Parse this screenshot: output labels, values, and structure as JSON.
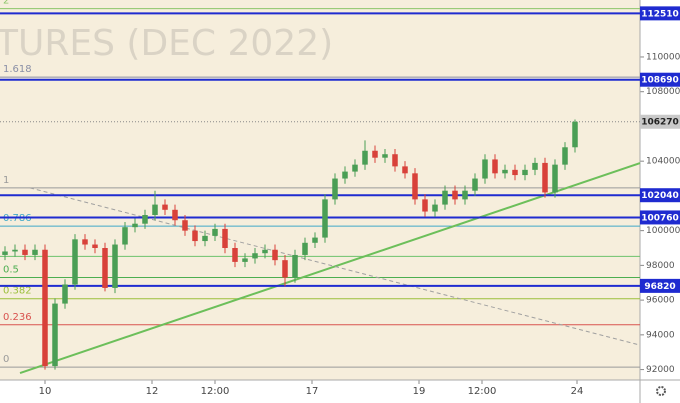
{
  "chart_data": {
    "type": "candlestick",
    "watermark": "TURES (DEC 2022)",
    "x": [
      -8,
      -6,
      -4,
      -2,
      0,
      2,
      4,
      6,
      8,
      10,
      12,
      14,
      16,
      18,
      20,
      22,
      24,
      26,
      28,
      30,
      32,
      34,
      36,
      38,
      40,
      42,
      44,
      46,
      48,
      50,
      52,
      54,
      56,
      58,
      60,
      62,
      64,
      66,
      68,
      70,
      72,
      74,
      76,
      78,
      80,
      82,
      84,
      86,
      88,
      90,
      92,
      94,
      96,
      98,
      100,
      102,
      104,
      106
    ],
    "open": [
      98600,
      98800,
      98900,
      98600,
      98900,
      92200,
      95800,
      96900,
      99500,
      99200,
      99000,
      96700,
      99200,
      100200,
      100400,
      100900,
      101500,
      101200,
      100600,
      100000,
      99400,
      99700,
      100100,
      99000,
      98200,
      98400,
      98700,
      98900,
      98300,
      97300,
      98600,
      99300,
      99600,
      101800,
      103000,
      103400,
      103800,
      104600,
      104200,
      104400,
      103700,
      103300,
      101800,
      101100,
      101500,
      102300,
      101800,
      102300,
      103000,
      104100,
      103300,
      103500,
      103200,
      103500,
      103900,
      102200,
      103800,
      104800
    ],
    "high": [
      99100,
      99200,
      99200,
      99200,
      99200,
      96100,
      97200,
      99800,
      99800,
      99500,
      99300,
      99500,
      100500,
      100700,
      101200,
      102300,
      101800,
      101500,
      100900,
      100300,
      100000,
      100400,
      100400,
      99300,
      98700,
      99000,
      99200,
      99200,
      98600,
      98900,
      99600,
      99900,
      102100,
      103300,
      103700,
      104100,
      105200,
      104900,
      104700,
      104700,
      104000,
      103600,
      102100,
      101800,
      102600,
      102600,
      102600,
      103300,
      104400,
      104400,
      103800,
      103800,
      103800,
      104200,
      104200,
      104100,
      105100,
      106400
    ],
    "low": [
      98300,
      98500,
      98300,
      98300,
      92000,
      92000,
      95500,
      96600,
      98900,
      98700,
      96500,
      96400,
      98900,
      99900,
      100100,
      100600,
      100900,
      100300,
      99700,
      99100,
      99100,
      99400,
      98700,
      97900,
      97900,
      98100,
      98400,
      98000,
      96800,
      97000,
      98300,
      99000,
      99300,
      101500,
      102700,
      103100,
      103500,
      103900,
      103900,
      103400,
      103000,
      101500,
      100800,
      100800,
      101200,
      101500,
      101500,
      102000,
      102700,
      103000,
      103000,
      102900,
      102900,
      103200,
      101900,
      101900,
      103500,
      104500
    ],
    "close": [
      98800,
      98900,
      98600,
      98900,
      92200,
      95800,
      96900,
      99500,
      99200,
      99000,
      96700,
      99200,
      100200,
      100400,
      100900,
      101500,
      101200,
      100600,
      100000,
      99400,
      99700,
      100100,
      99000,
      98200,
      98400,
      98700,
      98900,
      98300,
      97300,
      98600,
      99300,
      99600,
      101800,
      103000,
      103400,
      103800,
      104600,
      104200,
      104400,
      103700,
      103300,
      101800,
      101100,
      101500,
      102300,
      101800,
      102300,
      103000,
      104100,
      103300,
      103500,
      103200,
      103500,
      103900,
      102200,
      103800,
      104800,
      106270
    ],
    "up_color": "#4a9e55",
    "down_color": "#d8413a",
    "xlim": [
      -9,
      119
    ],
    "xticks": [
      {
        "value": 0,
        "label": "10"
      },
      {
        "value": 21.4,
        "label": "12"
      },
      {
        "value": 34,
        "label": "12:00"
      },
      {
        "value": 53.4,
        "label": "17"
      },
      {
        "value": 74.8,
        "label": "19"
      },
      {
        "value": 87.4,
        "label": "12:00"
      },
      {
        "value": 106.4,
        "label": "24"
      }
    ],
    "ylim": [
      91400,
      113280
    ],
    "yticks": [
      92000,
      94000,
      96000,
      98000,
      100000,
      104000,
      108000,
      110000
    ],
    "price_levels": [
      112510,
      108690,
      102040,
      100760,
      96820
    ],
    "level_color": "#1f2bd0",
    "last_price": 106270,
    "fib_levels": [
      {
        "value": 112780,
        "label": "2",
        "color": "#8cc66a"
      },
      {
        "value": 108840,
        "label": "1.618",
        "color": "#8a8fa6"
      },
      {
        "value": 102460,
        "label": "1",
        "color": "#9a9a9a"
      },
      {
        "value": 100260,
        "label": "0.786",
        "color": "#3fa8c8"
      },
      {
        "value": 98520,
        "label": null,
        "color": "#6cc26c"
      },
      {
        "value": 97300,
        "label": "0.5",
        "color": "#4cae50"
      },
      {
        "value": 96080,
        "label": "0.382",
        "color": "#9bbf3a"
      },
      {
        "value": 94580,
        "label": "0.236",
        "color": "#d9534f"
      },
      {
        "value": 92140,
        "label": "0",
        "color": "#9a9a9a"
      }
    ],
    "trendlines": [
      {
        "x": [
          -5,
          119
        ],
        "y": [
          91800,
          103890
        ],
        "color": "#6cbf5a",
        "dash": false
      },
      {
        "x": [
          -3,
          119
        ],
        "y": [
          102460,
          93410
        ],
        "color": "#a0a0a0",
        "dash": true
      }
    ]
  }
}
